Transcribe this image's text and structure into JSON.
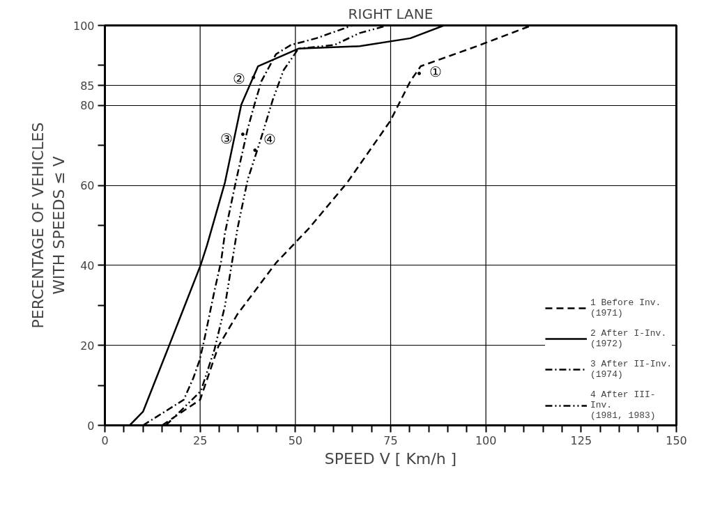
{
  "chart_data": {
    "type": "line",
    "title": "RIGHT LANE",
    "xlabel": "SPEED V [ Km/h ]",
    "ylabel": "PERCENTAGE OF VEHICLES\nWITH SPEEDS ≤ V",
    "xlim": [
      0,
      150
    ],
    "ylim": [
      0,
      100
    ],
    "xticks": [
      0,
      {
        "value": 5,
        "label": null
      },
      {
        "value": 10,
        "label": null
      },
      {
        "value": 15,
        "label": null
      },
      {
        "value": 20,
        "label": null
      },
      25,
      {
        "value": 30,
        "label": null
      },
      {
        "value": 35,
        "label": null
      },
      {
        "value": 40,
        "label": null
      },
      {
        "value": 45,
        "label": null
      },
      50,
      {
        "value": 55,
        "label": null
      },
      {
        "value": 60,
        "label": null
      },
      {
        "value": 65,
        "label": null
      },
      {
        "value": 70,
        "label": null
      },
      75,
      {
        "value": 80,
        "label": null
      },
      {
        "value": 85,
        "label": null
      },
      {
        "value": 90,
        "label": null
      },
      {
        "value": 95,
        "label": null
      },
      100,
      {
        "value": 105,
        "label": null
      },
      {
        "value": 110,
        "label": null
      },
      {
        "value": 115,
        "label": null
      },
      {
        "value": 120,
        "label": null
      },
      125,
      {
        "value": 130,
        "label": null
      },
      {
        "value": 135,
        "label": null
      },
      {
        "value": 140,
        "label": null
      },
      {
        "value": 145,
        "label": null
      },
      150
    ],
    "yticks": [
      0,
      {
        "value": 10,
        "label": null
      },
      20,
      {
        "value": 30,
        "label": null
      },
      40,
      {
        "value": 50,
        "label": null
      },
      60,
      {
        "value": 70,
        "label": null
      },
      80,
      85,
      {
        "value": 90,
        "label": null
      },
      100
    ],
    "grid": "y",
    "ref_lines": [
      {
        "axis": "x",
        "value": 25,
        "label": null
      },
      {
        "axis": "x",
        "value": 50,
        "label": null
      },
      {
        "axis": "x",
        "value": 75,
        "label": null
      },
      {
        "axis": "x",
        "value": 100,
        "label": null
      }
    ],
    "legend": "bottom right",
    "series": [
      {
        "name": "1 Before Inv.\n(1971)",
        "color": "#000000",
        "line_style": "dashed",
        "x": [
          15,
          25,
          29.8,
          34.8,
          44.9,
          53.5,
          63.6,
          74.9,
          80.2,
          82.9,
          97.6,
          112
        ],
        "values": [
          0,
          6.4,
          19.8,
          27.8,
          40.6,
          49.2,
          60.7,
          76.1,
          86.1,
          89.8,
          94.8,
          100
        ]
      },
      {
        "name": "2 After I-Inv.\n(1972)",
        "color": "#000000",
        "line_style": "solid",
        "x": [
          6.5,
          10,
          16.8,
          25.1,
          26.8,
          31.5,
          35.8,
          40.2,
          50.8,
          66.9,
          80.2,
          89
        ],
        "values": [
          0,
          3.4,
          19.8,
          40,
          45,
          60.7,
          80.2,
          89.8,
          94.2,
          94.8,
          96.8,
          100
        ]
      },
      {
        "name": "3 After II-Inv.\n(1974)",
        "color": "#000000",
        "line_style": "dashdot",
        "x": [
          10,
          20.7,
          23.2,
          24.9,
          26.2,
          28.8,
          30.5,
          31.5,
          34.5,
          37.5,
          39.4,
          41.1,
          44.9,
          48.8,
          55.5,
          65
        ],
        "values": [
          0,
          6.4,
          11.8,
          16.4,
          21.9,
          33.8,
          41,
          48,
          61.5,
          74.2,
          80.7,
          86.1,
          92.8,
          95.1,
          96.8,
          100
        ]
      },
      {
        "name": "4 After III-\nInv.\n(1981, 1983)",
        "color": "#000000",
        "line_style": "dashdotdot",
        "x": [
          16,
          25.2,
          28.8,
          31.5,
          33.2,
          34.8,
          37.5,
          40.9,
          44.1,
          46.9,
          50.8,
          60.2,
          66.9,
          74.2
        ],
        "values": [
          0,
          8.6,
          19.1,
          29.8,
          39.8,
          49.2,
          61.5,
          71.5,
          81.5,
          88.8,
          94.2,
          95.1,
          98.1,
          100
        ]
      }
    ],
    "annotations": [
      {
        "text": "①",
        "x": 82.5,
        "y": 88
      },
      {
        "text": "②",
        "x": 39,
        "y": 87
      },
      {
        "text": "③",
        "x": 36.2,
        "y": 72.8
      },
      {
        "text": "④",
        "x": 39.4,
        "y": 68.8
      }
    ]
  }
}
